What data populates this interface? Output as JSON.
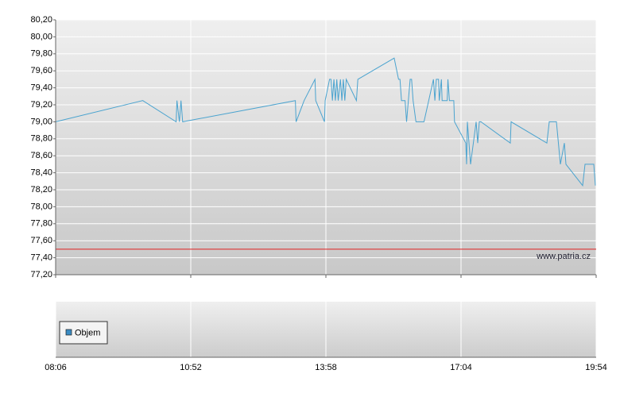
{
  "chart_data": [
    {
      "type": "line",
      "x": [
        "08:06",
        "09:53",
        "10:34",
        "10:35",
        "10:38",
        "10:40",
        "10:42",
        "13:16",
        "13:17",
        "13:28",
        "13:43",
        "13:44",
        "13:56",
        "13:57",
        "14:03",
        "14:05",
        "14:07",
        "14:09",
        "14:11",
        "14:13",
        "14:15",
        "14:18",
        "14:20",
        "14:22",
        "14:24",
        "14:26",
        "14:40",
        "14:42",
        "15:32",
        "15:38",
        "15:40",
        "15:42",
        "15:47",
        "15:49",
        "15:54",
        "15:56",
        "15:58",
        "16:02",
        "16:07",
        "16:13",
        "16:26",
        "16:28",
        "16:30",
        "16:33",
        "16:34",
        "16:37",
        "16:38",
        "16:45",
        "16:46",
        "16:48",
        "16:54",
        "16:55",
        "17:10",
        "17:11",
        "17:12",
        "17:16",
        "17:23",
        "17:25",
        "17:27",
        "17:29",
        "18:06",
        "18:07",
        "18:52",
        "18:55",
        "19:04",
        "19:09",
        "19:14",
        "19:16",
        "19:37",
        "19:40",
        "19:51",
        "19:53"
      ],
      "values": [
        79.0,
        79.25,
        79.0,
        79.25,
        79.0,
        79.25,
        79.0,
        79.25,
        79.0,
        79.25,
        79.5,
        79.25,
        79.0,
        79.25,
        79.5,
        79.5,
        79.25,
        79.5,
        79.25,
        79.5,
        79.25,
        79.5,
        79.25,
        79.5,
        79.25,
        79.5,
        79.25,
        79.5,
        79.75,
        79.5,
        79.5,
        79.25,
        79.25,
        79.0,
        79.5,
        79.5,
        79.25,
        79.0,
        79.0,
        79.0,
        79.5,
        79.25,
        79.5,
        79.5,
        79.25,
        79.5,
        79.25,
        79.25,
        79.5,
        79.25,
        79.25,
        79.0,
        78.75,
        78.5,
        79.0,
        78.5,
        79.0,
        78.75,
        79.0,
        79.0,
        78.75,
        79.0,
        78.75,
        79.0,
        79.0,
        78.5,
        78.75,
        78.5,
        78.25,
        78.5,
        78.5,
        78.25
      ],
      "color": "#4aa3cf",
      "xlim": [
        "08:06",
        "19:54"
      ],
      "xticks": [
        "08:06",
        "10:52",
        "13:58",
        "17:04",
        "19:54"
      ],
      "ylim": [
        77.2,
        80.2
      ],
      "yticks": [
        {
          "value": 77.2,
          "label": "77,20"
        },
        {
          "value": 77.4,
          "label": "77,40"
        },
        {
          "value": 77.6,
          "label": "77,60"
        },
        {
          "value": 77.8,
          "label": "77,80"
        },
        {
          "value": 78.0,
          "label": "78,00"
        },
        {
          "value": 78.2,
          "label": "78,20"
        },
        {
          "value": 78.4,
          "label": "78,40"
        },
        {
          "value": 78.6,
          "label": "78,60"
        },
        {
          "value": 78.8,
          "label": "78,80"
        },
        {
          "value": 79.0,
          "label": "79,00"
        },
        {
          "value": 79.2,
          "label": "79,20"
        },
        {
          "value": 79.4,
          "label": "79,40"
        },
        {
          "value": 79.6,
          "label": "79,60"
        },
        {
          "value": 79.8,
          "label": "79,80"
        },
        {
          "value": 80.0,
          "label": "80,00"
        },
        {
          "value": 80.2,
          "label": "80,20"
        }
      ],
      "reference_line": 77.5,
      "reference_color": "#e02020",
      "grid": true,
      "annotation": "www.patria.cz"
    },
    {
      "type": "bar",
      "series": [
        {
          "name": "Objem",
          "color": "#3a8cc4",
          "values": []
        }
      ]
    }
  ]
}
